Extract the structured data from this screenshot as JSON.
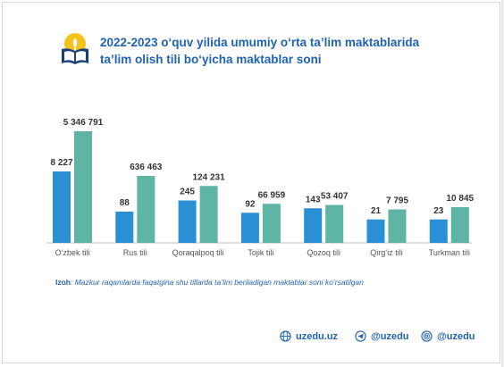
{
  "header": {
    "title_line1": "2022-2023 o‘quv yilida umumiy o‘rta ta’lim maktablarida",
    "title_line2": "ta’lim olish tili bo‘yicha maktablar soni"
  },
  "chart_data": {
    "type": "bar",
    "title": "2022-2023 o‘quv yilida umumiy o‘rta ta’lim maktablarida ta’lim olish tili bo‘yicha maktablar soni",
    "categories": [
      "O‘zbek tili",
      "Rus tili",
      "Qoraqalpoq tili",
      "Tojik tili",
      "Qozoq tili",
      "Qirg‘iz tili",
      "Turkman tili"
    ],
    "series": [
      {
        "values": [
          8227,
          88,
          245,
          92,
          143,
          21,
          23
        ],
        "labels": [
          "8 227",
          "88",
          "245",
          "92",
          "143",
          "21",
          "23"
        ],
        "color": "#2b8fd6"
      },
      {
        "values": [
          5346791,
          636463,
          124231,
          66959,
          53407,
          7795,
          10845
        ],
        "labels": [
          "5 346 791",
          "636 463",
          "124 231",
          "66 959",
          "53 407",
          "7 795",
          "10 845"
        ],
        "color": "#5fb5a3"
      }
    ],
    "bar_heights_fraction_blue": [
      0.64,
      0.28,
      0.38,
      0.27,
      0.31,
      0.21,
      0.21
    ],
    "bar_heights_fraction_green": [
      1.0,
      0.6,
      0.51,
      0.35,
      0.34,
      0.3,
      0.32
    ],
    "grid": false,
    "legend": "none"
  },
  "note": {
    "label": "Izoh",
    "text": ": Mazkur raqamlarda faqatgina shu tillarda ta’lim beriladigan maktablar soni ko‘rsatilgan"
  },
  "footer": {
    "website": "uzedu.uz",
    "telegram": "@uzedu",
    "instagram": "@uzedu"
  },
  "colors": {
    "accent": "#1f63b3",
    "blue_bar": "#2b8fd6",
    "green_bar": "#5fb5a3",
    "logo_yellow": "#f4c21b",
    "logo_navy": "#1a3f7a"
  }
}
